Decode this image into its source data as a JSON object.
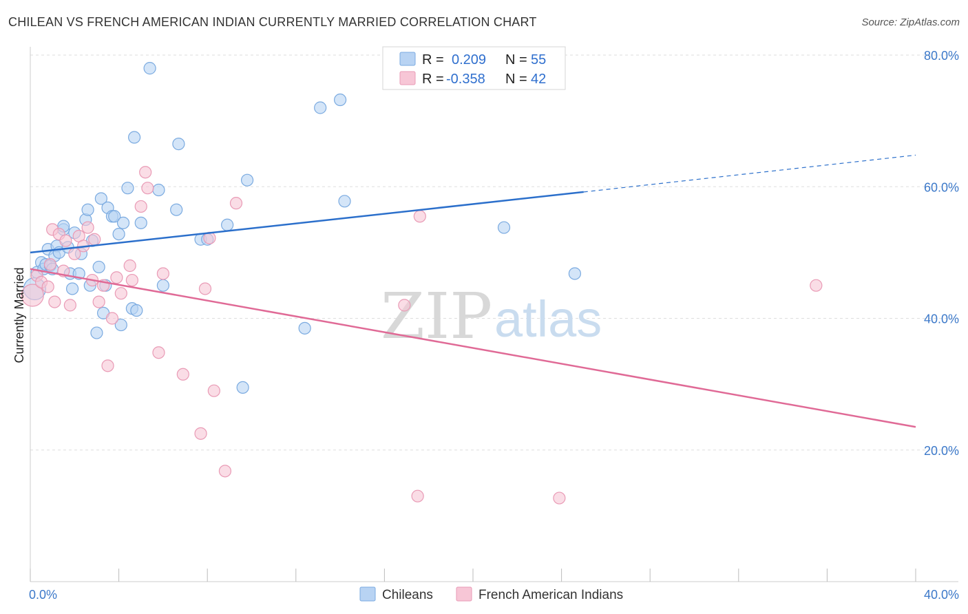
{
  "title": "CHILEAN VS FRENCH AMERICAN INDIAN CURRENTLY MARRIED CORRELATION CHART",
  "source": "Source: ZipAtlas.com",
  "watermark": {
    "zip": "ZIP",
    "atlas": "atlas"
  },
  "legend_top": [
    {
      "r_label": "R =",
      "r_value": "0.209",
      "n_label": "N =",
      "n_value": "55"
    },
    {
      "r_label": "R =",
      "r_value": "-0.358",
      "n_label": "N =",
      "n_value": "42"
    }
  ],
  "legend_bottom": [
    "Chileans",
    "French American Indians"
  ],
  "colors": {
    "blue_fill": "#b8d3f3",
    "blue_stroke": "#7aaae0",
    "blue_line": "#2b6fcb",
    "pink_fill": "#f7c6d6",
    "pink_stroke": "#e99ab5",
    "pink_line": "#e06a96",
    "grid": "#dddddd",
    "axis_text": "#3b78c9"
  },
  "chart_data": {
    "type": "scatter",
    "ylabel": "Currently Married",
    "xlabel": "",
    "xlim": [
      0,
      40
    ],
    "ylim": [
      0,
      80
    ],
    "x_tick_labels": [
      "0.0%",
      "40.0%"
    ],
    "y_ticks": [
      20,
      40,
      60,
      80
    ],
    "y_tick_labels": [
      "20.0%",
      "40.0%",
      "60.0%",
      "80.0%"
    ],
    "grid": "horizontal dashed",
    "series": [
      {
        "name": "Chileans",
        "points": [
          [
            0.2,
            44.5
          ],
          [
            0.3,
            47.0
          ],
          [
            0.5,
            48.5
          ],
          [
            0.6,
            47.5
          ],
          [
            0.7,
            48.2
          ],
          [
            0.8,
            50.5
          ],
          [
            0.9,
            48.0
          ],
          [
            1.0,
            47.5
          ],
          [
            1.1,
            49.5
          ],
          [
            1.2,
            51.0
          ],
          [
            1.3,
            50.0
          ],
          [
            1.5,
            53.5
          ],
          [
            1.5,
            54.0
          ],
          [
            1.7,
            50.8
          ],
          [
            1.8,
            46.8
          ],
          [
            1.9,
            44.5
          ],
          [
            2.0,
            53.0
          ],
          [
            2.2,
            46.8
          ],
          [
            2.3,
            49.8
          ],
          [
            2.5,
            55.0
          ],
          [
            2.6,
            56.5
          ],
          [
            2.7,
            45.0
          ],
          [
            2.8,
            51.8
          ],
          [
            3.0,
            37.8
          ],
          [
            3.1,
            47.8
          ],
          [
            3.2,
            58.2
          ],
          [
            3.3,
            40.8
          ],
          [
            3.4,
            45.0
          ],
          [
            3.5,
            56.8
          ],
          [
            3.7,
            55.5
          ],
          [
            3.8,
            55.5
          ],
          [
            4.0,
            52.8
          ],
          [
            4.1,
            39.0
          ],
          [
            4.2,
            54.5
          ],
          [
            4.4,
            59.8
          ],
          [
            4.6,
            41.5
          ],
          [
            4.7,
            67.5
          ],
          [
            4.8,
            41.2
          ],
          [
            5.0,
            54.5
          ],
          [
            5.4,
            78.0
          ],
          [
            5.8,
            59.5
          ],
          [
            6.0,
            45.0
          ],
          [
            6.6,
            56.5
          ],
          [
            6.7,
            66.5
          ],
          [
            7.7,
            52.0
          ],
          [
            8.0,
            52.0
          ],
          [
            8.9,
            54.2
          ],
          [
            9.6,
            29.5
          ],
          [
            9.8,
            61.0
          ],
          [
            12.4,
            38.5
          ],
          [
            13.1,
            72.0
          ],
          [
            14.0,
            73.2
          ],
          [
            14.2,
            57.8
          ],
          [
            21.4,
            53.8
          ],
          [
            24.6,
            46.8
          ]
        ],
        "trend": {
          "x": [
            0,
            25
          ],
          "y": [
            50.0,
            59.2
          ],
          "dashed_to": [
            40,
            64.8
          ]
        }
      },
      {
        "name": "French American Indians",
        "points": [
          [
            0.1,
            43.5
          ],
          [
            0.3,
            46.5
          ],
          [
            0.5,
            45.5
          ],
          [
            0.8,
            44.8
          ],
          [
            0.9,
            48.2
          ],
          [
            1.0,
            53.5
          ],
          [
            1.1,
            42.5
          ],
          [
            1.3,
            52.8
          ],
          [
            1.5,
            47.2
          ],
          [
            1.6,
            51.8
          ],
          [
            1.8,
            42.0
          ],
          [
            2.0,
            49.8
          ],
          [
            2.2,
            52.5
          ],
          [
            2.4,
            51.0
          ],
          [
            2.6,
            53.8
          ],
          [
            2.8,
            45.8
          ],
          [
            2.9,
            52.0
          ],
          [
            3.1,
            42.5
          ],
          [
            3.3,
            45.0
          ],
          [
            3.5,
            32.8
          ],
          [
            3.7,
            40.0
          ],
          [
            3.9,
            46.2
          ],
          [
            4.1,
            43.8
          ],
          [
            4.5,
            48.0
          ],
          [
            4.6,
            45.8
          ],
          [
            5.0,
            57.0
          ],
          [
            5.2,
            62.2
          ],
          [
            5.3,
            59.8
          ],
          [
            5.8,
            34.8
          ],
          [
            6.0,
            46.8
          ],
          [
            6.9,
            31.5
          ],
          [
            7.7,
            22.5
          ],
          [
            7.9,
            44.5
          ],
          [
            8.1,
            52.2
          ],
          [
            8.3,
            29.0
          ],
          [
            8.8,
            16.8
          ],
          [
            9.3,
            57.5
          ],
          [
            16.9,
            42.0
          ],
          [
            17.5,
            13.0
          ],
          [
            17.6,
            55.5
          ],
          [
            23.9,
            12.7
          ],
          [
            35.5,
            45.0
          ]
        ],
        "trend": {
          "x": [
            0,
            40
          ],
          "y": [
            47.5,
            23.5
          ]
        }
      }
    ]
  }
}
